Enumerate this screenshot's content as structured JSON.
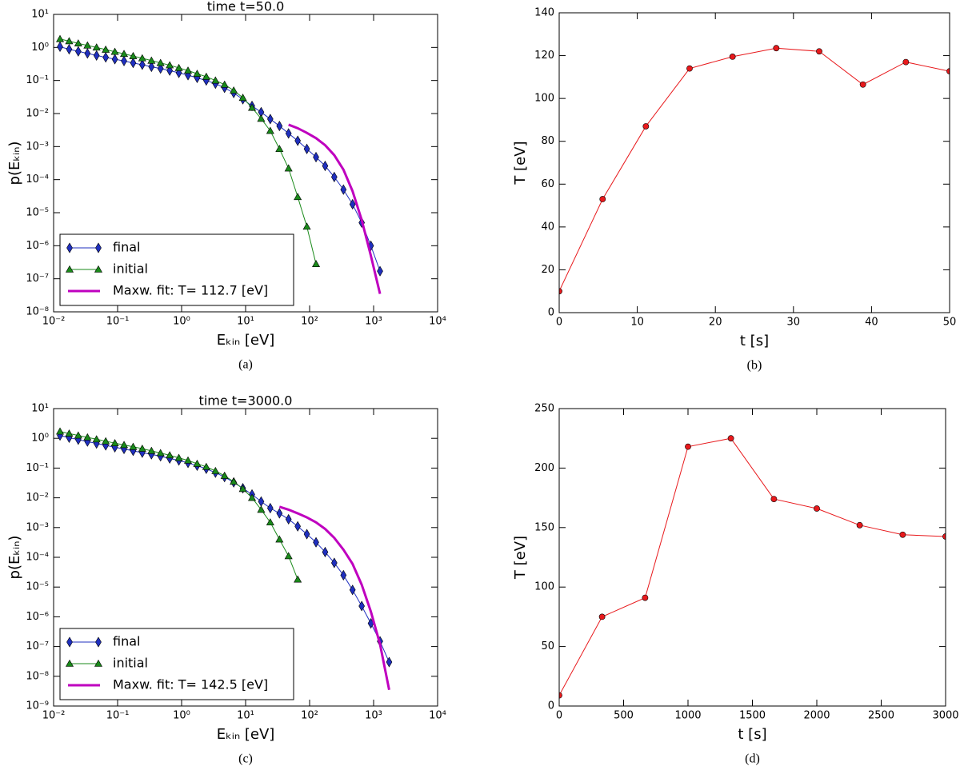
{
  "chart_data": [
    {
      "type": "line",
      "title": "time   t=50.0",
      "xlabel": "Eₖᵢₙ [eV]",
      "ylabel": "p(Eₖᵢₙ)",
      "caption": "(a)",
      "xscale": "log",
      "yscale": "log",
      "legend": "lower left",
      "xlim": [
        0.01,
        10000
      ],
      "ylim": [
        1e-08,
        10
      ],
      "xticks": [
        {
          "value": 0.01,
          "label": "10⁻²"
        },
        {
          "value": 0.1,
          "label": "10⁻¹"
        },
        {
          "value": 1,
          "label": "10⁰"
        },
        {
          "value": 10,
          "label": "10¹"
        },
        {
          "value": 100,
          "label": "10²"
        },
        {
          "value": 1000,
          "label": "10³"
        },
        {
          "value": 10000,
          "label": "10⁴"
        }
      ],
      "yticks": [
        {
          "value": 1e-08,
          "label": "10⁻⁸"
        },
        {
          "value": 1e-07,
          "label": "10⁻⁷"
        },
        {
          "value": 1e-06,
          "label": "10⁻⁶"
        },
        {
          "value": 1e-05,
          "label": "10⁻⁵"
        },
        {
          "value": 0.0001,
          "label": "10⁻⁴"
        },
        {
          "value": 0.001,
          "label": "10⁻³"
        },
        {
          "value": 0.01,
          "label": "10⁻²"
        },
        {
          "value": 0.1,
          "label": "10⁻¹"
        },
        {
          "value": 1,
          "label": "10⁰"
        },
        {
          "value": 10,
          "label": "10¹"
        }
      ],
      "x": [
        0.0126,
        0.0175,
        0.0243,
        0.0338,
        0.0469,
        0.0652,
        0.0906,
        0.126,
        0.175,
        0.243,
        0.338,
        0.469,
        0.652,
        0.906,
        1.26,
        1.75,
        2.43,
        3.38,
        4.69,
        6.52,
        9.06,
        12.6,
        17.5,
        24.3,
        33.8,
        46.9,
        65.2,
        90.6,
        126,
        175,
        243,
        338,
        469,
        652,
        906,
        1260
      ],
      "series": [
        {
          "name": "final",
          "color": "#1f2fbf",
          "marker": "d",
          "linewidth": 1,
          "values": [
            1.05,
            0.88,
            0.76,
            0.66,
            0.57,
            0.5,
            0.44,
            0.39,
            0.34,
            0.3,
            0.26,
            0.23,
            0.2,
            0.17,
            0.145,
            0.12,
            0.1,
            0.08,
            0.06,
            0.042,
            0.027,
            0.017,
            0.011,
            0.0068,
            0.0042,
            0.0025,
            0.0015,
            0.00085,
            0.00048,
            0.00026,
            0.00012,
            5e-05,
            1.8e-05,
            5e-06,
            1e-06,
            1.7e-07
          ]
        },
        {
          "name": "initial",
          "color": "#1a8a1a",
          "marker": "^",
          "linewidth": 1,
          "values": [
            1.8,
            1.55,
            1.33,
            1.15,
            1.0,
            0.86,
            0.74,
            0.64,
            0.55,
            0.47,
            0.4,
            0.34,
            0.29,
            0.24,
            0.2,
            0.16,
            0.13,
            0.1,
            0.075,
            0.05,
            0.03,
            0.015,
            0.007,
            0.003,
            0.00085,
            0.00022,
            3e-05,
            3.8e-06,
            2.8e-07,
            null,
            null,
            null,
            null,
            null,
            null,
            null
          ]
        },
        {
          "name": "Maxw. fit: T=  112.7 [eV]",
          "color": "#bf00bf",
          "marker": "none",
          "linewidth": 3,
          "values": [
            null,
            null,
            null,
            null,
            null,
            null,
            null,
            null,
            null,
            null,
            null,
            null,
            null,
            null,
            null,
            null,
            null,
            null,
            null,
            null,
            null,
            null,
            null,
            null,
            null,
            0.0046,
            0.0036,
            0.0026,
            0.0018,
            0.0011,
            0.00055,
            0.0002,
            4.5e-05,
            6e-06,
            5e-07,
            3.5e-08
          ]
        }
      ]
    },
    {
      "type": "line",
      "xlabel": "t [s]",
      "ylabel": "T [eV]",
      "caption": "(b)",
      "xscale": "linear",
      "yscale": "linear",
      "xlim": [
        0,
        50
      ],
      "ylim": [
        0,
        140
      ],
      "xticks": [
        0,
        10,
        20,
        30,
        40,
        50
      ],
      "yticks": [
        0,
        20,
        40,
        60,
        80,
        100,
        120,
        140
      ],
      "x": [
        0,
        5.56,
        11.1,
        16.7,
        22.2,
        27.8,
        33.3,
        38.9,
        44.4,
        50
      ],
      "series": [
        {
          "color": "#e8191c",
          "marker": "o",
          "linewidth": 1,
          "values": [
            10,
            53,
            87,
            114,
            119.5,
            123.5,
            122,
            106.5,
            117,
            112.7
          ]
        }
      ]
    },
    {
      "type": "line",
      "title": "time   t=3000.0",
      "xlabel": "Eₖᵢₙ [eV]",
      "ylabel": "p(Eₖᵢₙ)",
      "caption": "(c)",
      "xscale": "log",
      "yscale": "log",
      "legend": "lower left",
      "xlim": [
        0.01,
        10000
      ],
      "ylim": [
        1e-09,
        10
      ],
      "xticks": [
        {
          "value": 0.01,
          "label": "10⁻²"
        },
        {
          "value": 0.1,
          "label": "10⁻¹"
        },
        {
          "value": 1,
          "label": "10⁰"
        },
        {
          "value": 10,
          "label": "10¹"
        },
        {
          "value": 100,
          "label": "10²"
        },
        {
          "value": 1000,
          "label": "10³"
        },
        {
          "value": 10000,
          "label": "10⁴"
        }
      ],
      "yticks": [
        {
          "value": 1e-09,
          "label": "10⁻⁹"
        },
        {
          "value": 1e-08,
          "label": "10⁻⁸"
        },
        {
          "value": 1e-07,
          "label": "10⁻⁷"
        },
        {
          "value": 1e-06,
          "label": "10⁻⁶"
        },
        {
          "value": 1e-05,
          "label": "10⁻⁵"
        },
        {
          "value": 0.0001,
          "label": "10⁻⁴"
        },
        {
          "value": 0.001,
          "label": "10⁻³"
        },
        {
          "value": 0.01,
          "label": "10⁻²"
        },
        {
          "value": 0.1,
          "label": "10⁻¹"
        },
        {
          "value": 1,
          "label": "10⁰"
        },
        {
          "value": 10,
          "label": "10¹"
        }
      ],
      "x": [
        0.0126,
        0.0175,
        0.0243,
        0.0338,
        0.0469,
        0.0652,
        0.0906,
        0.126,
        0.175,
        0.243,
        0.338,
        0.469,
        0.652,
        0.906,
        1.26,
        1.75,
        2.43,
        3.38,
        4.69,
        6.52,
        9.06,
        12.6,
        17.5,
        24.3,
        33.8,
        46.9,
        65.2,
        90.6,
        126,
        175,
        243,
        338,
        469,
        652,
        906,
        1260,
        1750
      ],
      "series": [
        {
          "name": "final",
          "color": "#1f2fbf",
          "marker": "d",
          "linewidth": 1,
          "values": [
            1.25,
            1.05,
            0.9,
            0.78,
            0.67,
            0.58,
            0.5,
            0.44,
            0.38,
            0.33,
            0.29,
            0.25,
            0.21,
            0.18,
            0.15,
            0.12,
            0.095,
            0.07,
            0.05,
            0.033,
            0.021,
            0.013,
            0.0075,
            0.0045,
            0.003,
            0.0019,
            0.0011,
            0.0006,
            0.00032,
            0.00015,
            6.5e-05,
            2.5e-05,
            8e-06,
            2.3e-06,
            6e-07,
            1.5e-07,
            3e-08
          ]
        },
        {
          "name": "initial",
          "color": "#1a8a1a",
          "marker": "^",
          "linewidth": 1,
          "values": [
            1.7,
            1.45,
            1.25,
            1.08,
            0.93,
            0.8,
            0.69,
            0.6,
            0.52,
            0.45,
            0.38,
            0.32,
            0.27,
            0.22,
            0.18,
            0.14,
            0.11,
            0.08,
            0.055,
            0.035,
            0.02,
            0.01,
            0.004,
            0.0015,
            0.0004,
            0.00011,
            1.8e-05,
            null,
            null,
            null,
            null,
            null,
            null,
            null,
            null,
            null,
            null
          ]
        },
        {
          "name": "Maxw. fit: T=  142.5 [eV]",
          "color": "#bf00bf",
          "marker": "none",
          "linewidth": 3,
          "values": [
            null,
            null,
            null,
            null,
            null,
            null,
            null,
            null,
            null,
            null,
            null,
            null,
            null,
            null,
            null,
            null,
            null,
            null,
            null,
            null,
            null,
            null,
            null,
            null,
            0.005,
            0.004,
            0.003,
            0.0022,
            0.0015,
            0.0009,
            0.00045,
            0.00018,
            6e-05,
            1.2e-05,
            1.5e-06,
            1.2e-07,
            3.5e-09
          ]
        }
      ]
    },
    {
      "type": "line",
      "xlabel": "t [s]",
      "ylabel": "T [eV]",
      "caption": "(d)",
      "xscale": "linear",
      "yscale": "linear",
      "xlim": [
        0,
        3000
      ],
      "ylim": [
        0,
        250
      ],
      "xticks": [
        0,
        500,
        1000,
        1500,
        2000,
        2500,
        3000
      ],
      "yticks": [
        0,
        50,
        100,
        150,
        200,
        250
      ],
      "x": [
        0,
        333,
        667,
        1000,
        1333,
        1667,
        2000,
        2333,
        2667,
        3000
      ],
      "series": [
        {
          "color": "#e8191c",
          "marker": "o",
          "linewidth": 1,
          "values": [
            9,
            75,
            91,
            218,
            225,
            174,
            166,
            152,
            144,
            142.5
          ]
        }
      ]
    }
  ]
}
